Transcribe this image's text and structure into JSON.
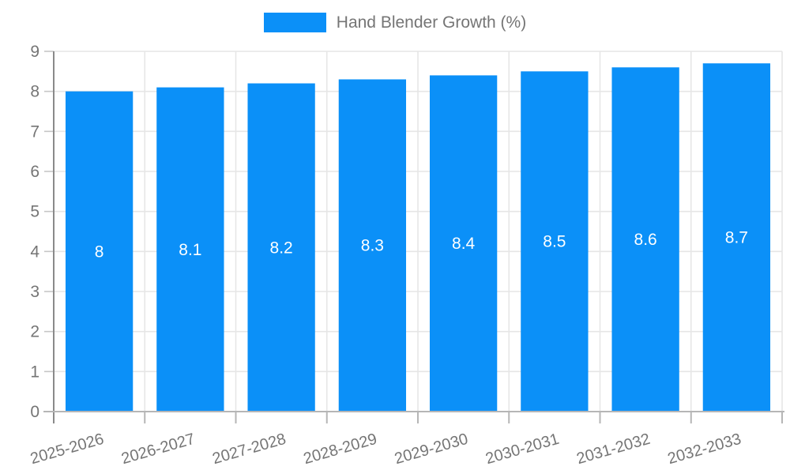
{
  "chart_data": {
    "type": "bar",
    "title": "Hand Blender Growth (%)",
    "categories": [
      "2025-2026",
      "2026-2027",
      "2027-2028",
      "2028-2029",
      "2029-2030",
      "2030-2031",
      "2031-2032",
      "2032-2033"
    ],
    "values": [
      8,
      8.1,
      8.2,
      8.3,
      8.4,
      8.5,
      8.6,
      8.7
    ],
    "value_labels": [
      "8",
      "8.1",
      "8.2",
      "8.3",
      "8.4",
      "8.5",
      "8.6",
      "8.7"
    ],
    "xlabel": "",
    "ylabel": "",
    "ylim": [
      0,
      9
    ],
    "yticks": [
      "0",
      "1",
      "2",
      "3",
      "4",
      "5",
      "6",
      "7",
      "8",
      "9"
    ],
    "grid": true,
    "legend_position": "top",
    "x_label_rotation_deg": -16,
    "colors": {
      "bar": "#0b90f8",
      "value_label": "#ffffff",
      "axis_text": "#757575",
      "gridline": "#e6e6e6",
      "y_axis_line": "#8a8a8a",
      "x_axis_line": "#b6b6b6",
      "y_tick": "#c6c6c6",
      "background": "#ffffff"
    }
  }
}
